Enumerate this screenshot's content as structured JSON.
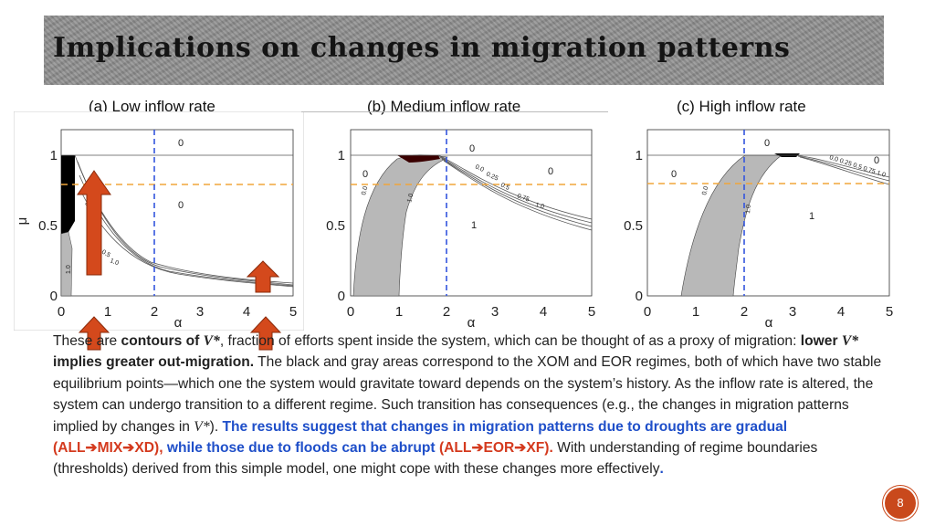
{
  "slide": {
    "title": "Implications on changes in migration patterns",
    "page_number": "8"
  },
  "panels": [
    {
      "label": "(a) Low inflow rate",
      "region_labels": [
        "0",
        "0"
      ],
      "contour_labels": [
        "0.2",
        "0.5",
        "1.0",
        "1.0"
      ],
      "axis_ylabel": "μ",
      "axis_xlabel": "α",
      "xticks": [
        "0",
        "1",
        "2",
        "3",
        "4",
        "5"
      ],
      "yticks": [
        "0",
        "0.5",
        "1"
      ]
    },
    {
      "label": "(b) Medium inflow rate",
      "region_labels": [
        "0",
        "0",
        "0",
        "1"
      ],
      "contour_labels": [
        "0.0",
        "1.0",
        "0.0",
        "0.25",
        "0.5",
        "0.75",
        "1.0"
      ],
      "axis_xlabel": "α",
      "xticks": [
        "0",
        "1",
        "2",
        "3",
        "4",
        "5"
      ],
      "yticks": [
        "0",
        "0.5",
        "1"
      ]
    },
    {
      "label": "(c) High inflow rate",
      "region_labels": [
        "0",
        "0",
        "0",
        "1"
      ],
      "contour_labels": [
        "0.0",
        "1.0",
        "0.0 0.25 0.5 0.75 1.0"
      ],
      "axis_xlabel": "α",
      "xticks": [
        "0",
        "1",
        "2",
        "3",
        "4",
        "5"
      ],
      "yticks": [
        "0",
        "0.5",
        "1"
      ]
    }
  ],
  "body": {
    "s1": "These are ",
    "s2": "contours of ",
    "s3": "V*",
    "s4": ", fraction of efforts spent inside the system, which can be thought of as a proxy of migration: ",
    "s5": "lower ",
    "s6": "V*",
    "s7": " implies greater out-migration.",
    "s8": "  The black and gray areas correspond to the XOM and EOR regimes, both of which have two stable equilibrium points—which one the system would gravitate toward depends on the system’s history.  As the inflow rate is altered, the system can undergo transition to a different regime.  Such transition has consequences (e.g., the changes in migration patterns implied by changes in ",
    "s9": "V*",
    "s10": "). ",
    "s11": "The results suggest that changes in migration patterns due to droughts are gradual ",
    "s12": "(ALL➔MIX➔XD),",
    "s13": " while those due to floods can be abrupt ",
    "s14": "(ALL➔EOR➔XF).",
    "s15": " With understanding of regime boundaries (thresholds) derived from this simple model, one might cope with these changes more effectively",
    "s16": "."
  },
  "colors": {
    "arrow": "#d4491c",
    "dashed_blue": "#3355dd",
    "dashed_orange": "#f0a53a",
    "gray_region": "#b8b8b8",
    "black_region": "#000000"
  }
}
